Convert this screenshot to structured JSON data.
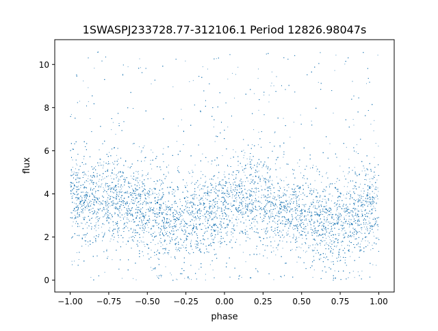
{
  "chart_data": {
    "type": "scatter",
    "title": "1SWASPJ233728.77-312106.1 Period 12826.98047s",
    "xlabel": "phase",
    "ylabel": "flux",
    "xlim": [
      -1.1,
      1.1
    ],
    "ylim": [
      -0.55,
      11.15
    ],
    "xticks": [
      -1.0,
      -0.75,
      -0.5,
      -0.25,
      0.0,
      0.25,
      0.5,
      0.75,
      1.0
    ],
    "xtick_labels": [
      "−1.00",
      "−0.75",
      "−0.50",
      "−0.25",
      "0.00",
      "0.25",
      "0.50",
      "0.75",
      "1.00"
    ],
    "yticks": [
      0,
      2,
      4,
      6,
      8,
      10
    ],
    "ytick_labels": [
      "0",
      "2",
      "4",
      "6",
      "8",
      "10"
    ],
    "grid": false,
    "marker_color": "#1f77b4",
    "data_range": {
      "x": [
        -1.0,
        1.0
      ],
      "y": [
        0.0,
        10.6
      ]
    },
    "trend": {
      "x": [
        -1.0,
        -0.75,
        -0.5,
        -0.3,
        -0.1,
        0.0,
        0.2,
        0.5,
        0.7,
        0.9,
        1.0
      ],
      "y": [
        3.7,
        3.8,
        3.2,
        2.7,
        3.1,
        3.5,
        3.8,
        3.0,
        2.6,
        3.1,
        3.6
      ]
    }
  }
}
